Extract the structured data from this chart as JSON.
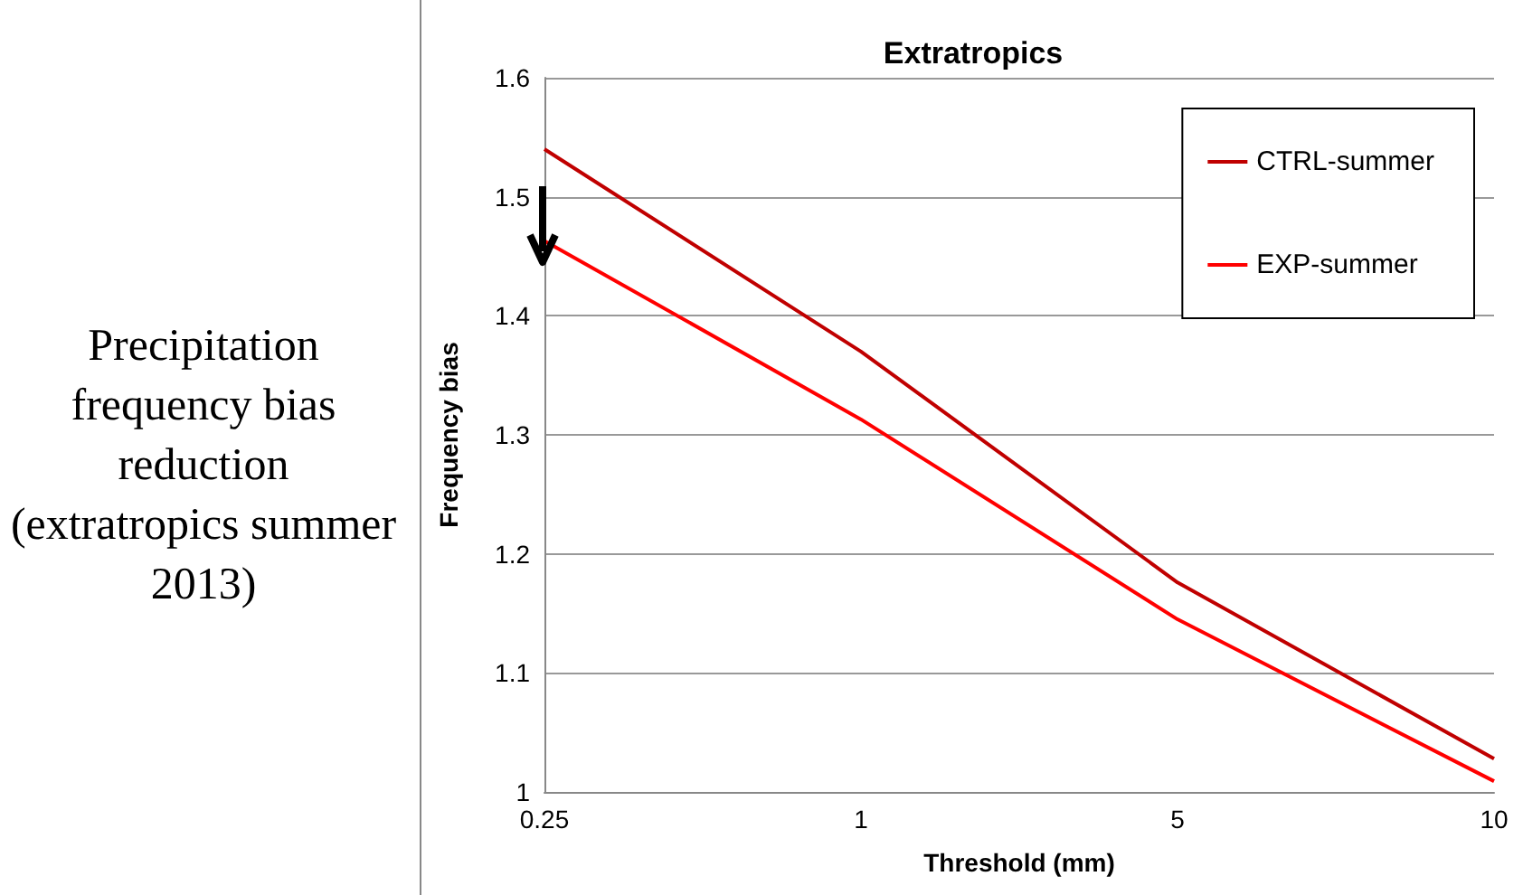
{
  "chart_data": {
    "type": "line",
    "title": "Extratropics",
    "xlabel": "Threshold (mm)",
    "ylabel": "Frequency bias",
    "annotations": [
      "Precipitation frequency bias reduction (extratropics summer 2013)"
    ],
    "categories": [
      "0.25",
      "1",
      "5",
      "10"
    ],
    "series": [
      {
        "name": "CTRL-summer",
        "color": "#c00000",
        "values": [
          1.54,
          1.37,
          1.176,
          1.028
        ]
      },
      {
        "name": "EXP-summer",
        "color": "#ff0000",
        "values": [
          1.463,
          1.313,
          1.145,
          1.009
        ]
      }
    ],
    "ylim": [
      1,
      1.6
    ],
    "yticks": [
      1,
      1.1,
      1.2,
      1.3,
      1.4,
      1.5,
      1.6
    ],
    "grid": "y",
    "legend": "top right",
    "marker": "none",
    "line_style": "solid"
  }
}
